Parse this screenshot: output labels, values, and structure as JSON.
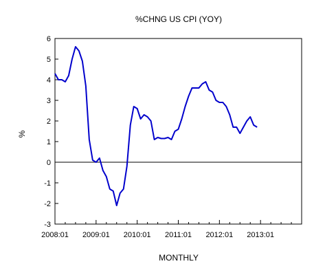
{
  "chart_data": {
    "type": "line",
    "title": "%CHNG US CPI (YOY)",
    "xlabel": "MONTHLY",
    "ylabel": "%",
    "ylim": [
      -3,
      6
    ],
    "y_ticks": [
      6,
      5,
      4,
      3,
      2,
      1,
      0,
      -1,
      -2,
      -3
    ],
    "x_tick_labels": [
      "2008:01",
      "2009:01",
      "2010:01",
      "2011:01",
      "2012:01",
      "2013:01"
    ],
    "x_range": [
      "2008:01",
      "2014:01"
    ],
    "zero_line": true,
    "grid": false,
    "legend": "none",
    "series": [
      {
        "color": "#0000cc",
        "x": [
          "2008:01",
          "2008:02",
          "2008:03",
          "2008:04",
          "2008:05",
          "2008:06",
          "2008:07",
          "2008:08",
          "2008:09",
          "2008:10",
          "2008:11",
          "2008:12",
          "2009:01",
          "2009:02",
          "2009:03",
          "2009:04",
          "2009:05",
          "2009:06",
          "2009:07",
          "2009:08",
          "2009:09",
          "2009:10",
          "2009:11",
          "2009:12",
          "2010:01",
          "2010:02",
          "2010:03",
          "2010:04",
          "2010:05",
          "2010:06",
          "2010:07",
          "2010:08",
          "2010:09",
          "2010:10",
          "2010:11",
          "2010:12",
          "2011:01",
          "2011:02",
          "2011:03",
          "2011:04",
          "2011:05",
          "2011:06",
          "2011:07",
          "2011:08",
          "2011:09",
          "2011:10",
          "2011:11",
          "2011:12",
          "2012:01",
          "2012:02",
          "2012:03",
          "2012:04",
          "2012:05",
          "2012:06",
          "2012:07",
          "2012:08",
          "2012:09",
          "2012:10",
          "2012:11",
          "2012:12"
        ],
        "values": [
          4.3,
          4.0,
          4.0,
          3.9,
          4.2,
          5.0,
          5.6,
          5.4,
          4.9,
          3.7,
          1.1,
          0.1,
          0.0,
          0.2,
          -0.4,
          -0.7,
          -1.3,
          -1.4,
          -2.1,
          -1.5,
          -1.3,
          -0.2,
          1.8,
          2.7,
          2.6,
          2.1,
          2.3,
          2.2,
          2.0,
          1.1,
          1.2,
          1.15,
          1.15,
          1.2,
          1.1,
          1.5,
          1.6,
          2.1,
          2.7,
          3.2,
          3.6,
          3.6,
          3.6,
          3.8,
          3.9,
          3.5,
          3.4,
          3.0,
          2.9,
          2.9,
          2.7,
          2.3,
          1.7,
          1.7,
          1.4,
          1.7,
          2.0,
          2.2,
          1.8,
          1.7
        ]
      }
    ]
  }
}
